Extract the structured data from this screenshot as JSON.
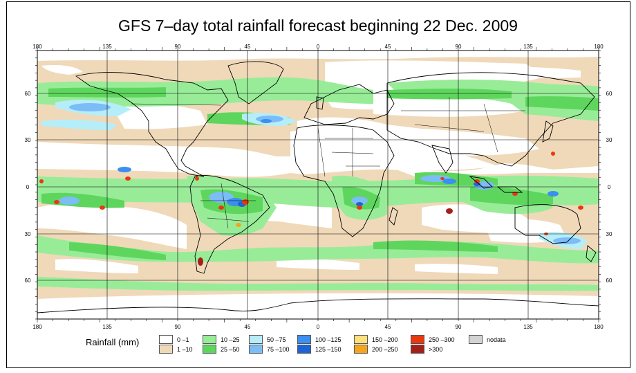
{
  "title": "GFS 7–day total rainfall forecast beginning 22 Dec. 2009",
  "axes": {
    "lon_ticks": [
      "180",
      "135",
      "90",
      "45",
      "0",
      "45",
      "90",
      "135",
      "180"
    ],
    "lat_ticks": [
      "60",
      "30",
      "0",
      "30",
      "60"
    ]
  },
  "legend": {
    "title": "Rainfall (mm)",
    "items": [
      {
        "label": "0 –1",
        "color": "#ffffff"
      },
      {
        "label": "1 –10",
        "color": "#efd9b9"
      },
      {
        "label": "10 –25",
        "color": "#98ec98"
      },
      {
        "label": "25 –50",
        "color": "#5ed65e"
      },
      {
        "label": "50 –75",
        "color": "#b5eef9"
      },
      {
        "label": "75 –100",
        "color": "#7cbcf7"
      },
      {
        "label": "100 –125",
        "color": "#3a8ff0"
      },
      {
        "label": "125 –150",
        "color": "#1e63d6"
      },
      {
        "label": "150 –200",
        "color": "#ffe07a"
      },
      {
        "label": "200 –250",
        "color": "#f6a41e"
      },
      {
        "label": "250 –300",
        "color": "#e8380f"
      },
      {
        "label": ">300",
        "color": "#a3201a"
      },
      {
        "label": "nodata",
        "color": "#d3d3d3"
      }
    ]
  }
}
